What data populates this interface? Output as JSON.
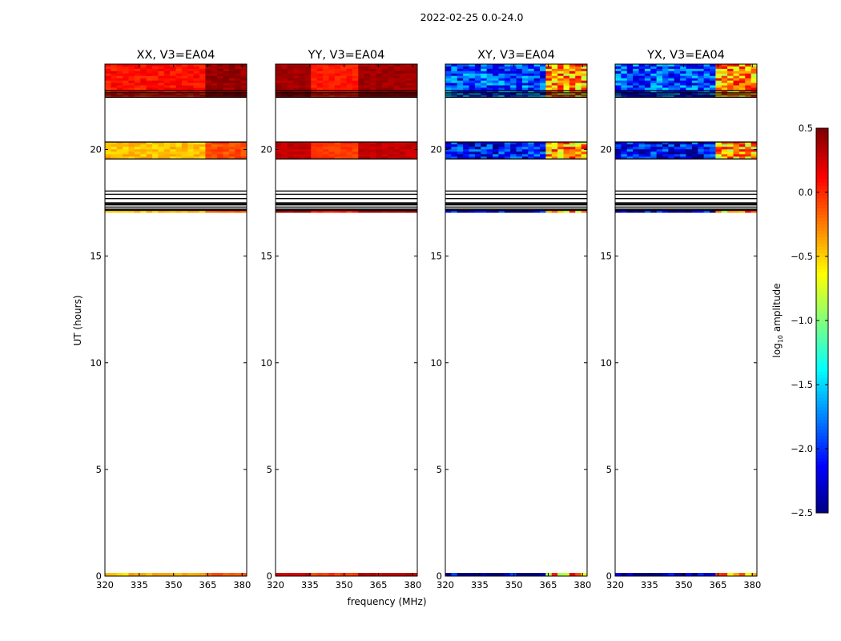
{
  "chart_data": {
    "type": "heatmap",
    "title": "2022-02-25 0.0-24.0",
    "xlabel": "frequency (MHz)",
    "ylabel": "UT (hours)",
    "xlim": [
      320,
      382
    ],
    "ylim": [
      0,
      24
    ],
    "xticks": [
      320,
      335,
      350,
      365,
      380
    ],
    "yticks": [
      0,
      5,
      10,
      15,
      20
    ],
    "colorbar": {
      "label_prefix": "log",
      "label_sub": "10",
      "label_suffix": " amplitude",
      "range": [
        -2.5,
        0.5
      ],
      "ticks": [
        "0.5",
        "0.0",
        "−0.5",
        "−1.0",
        "−1.5",
        "−2.0",
        "−2.5"
      ],
      "colormap": "jet"
    },
    "panels": [
      {
        "title": "XX, V3=EA04",
        "polarization": "XX",
        "blocks": [
          {
            "t0": 22.45,
            "t1": 24.0,
            "level": 0.08
          },
          {
            "t0": 19.55,
            "t1": 20.35,
            "level": -0.45
          },
          {
            "t0": 17.05,
            "t1": 17.15,
            "level": -0.45
          },
          {
            "t0": 0.0,
            "t1": 0.15,
            "level": -0.45
          }
        ]
      },
      {
        "title": "YY, V3=EA04",
        "polarization": "YY",
        "blocks": [
          {
            "t0": 22.45,
            "t1": 24.0,
            "level": 0.4
          },
          {
            "t0": 19.55,
            "t1": 20.35,
            "level": 0.3
          },
          {
            "t0": 17.05,
            "t1": 17.15,
            "level": 0.4
          },
          {
            "t0": 0.0,
            "t1": 0.15,
            "level": 0.3
          }
        ]
      },
      {
        "title": "XY, V3=EA04",
        "polarization": "XY",
        "blocks": [
          {
            "t0": 22.45,
            "t1": 24.0,
            "level": -1.9
          },
          {
            "t0": 19.55,
            "t1": 20.35,
            "level": -2.1
          },
          {
            "t0": 17.05,
            "t1": 17.15,
            "level": -2.3
          },
          {
            "t0": 0.0,
            "t1": 0.15,
            "level": -2.3
          }
        ]
      },
      {
        "title": "YX, V3=EA04",
        "polarization": "YX",
        "blocks": [
          {
            "t0": 22.45,
            "t1": 24.0,
            "level": -1.9
          },
          {
            "t0": 19.55,
            "t1": 20.35,
            "level": -2.1
          },
          {
            "t0": 17.05,
            "t1": 17.15,
            "level": -2.3
          },
          {
            "t0": 0.0,
            "t1": 0.15,
            "level": -2.3
          }
        ]
      }
    ],
    "flag_lines_ut": [
      22.45,
      22.55,
      22.65,
      22.75,
      20.35,
      19.55,
      18.05,
      17.9,
      17.7,
      17.5,
      17.45,
      17.4,
      17.3,
      17.2,
      17.15
    ]
  }
}
